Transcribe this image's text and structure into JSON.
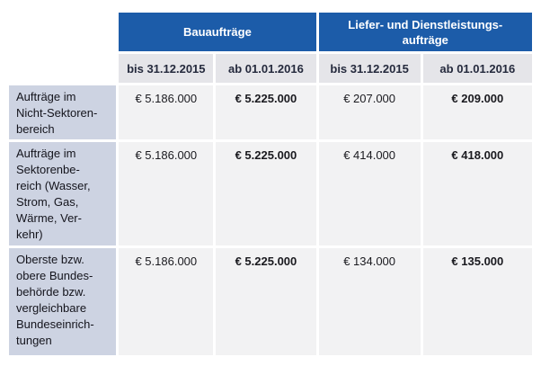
{
  "table": {
    "column_groups": [
      {
        "label": "Bauaufträge"
      },
      {
        "label": "Liefer- und Dienstleistungs-\naufträge"
      }
    ],
    "period_columns": [
      "bis 31.12.2015",
      "ab 01.01.2016",
      "bis 31.12.2015",
      "ab 01.01.2016"
    ],
    "rows": [
      {
        "label": "Aufträge im\nNicht-Sektoren-\nbereich",
        "values": [
          "€ 5.186.000",
          "€ 5.225.000",
          "€ 207.000",
          "€ 209.000"
        ]
      },
      {
        "label": "Aufträge im\nSektorenbe-\nreich (Wasser,\nStrom, Gas,\nWärme, Ver-\nkehr)",
        "values": [
          "€ 5.186.000",
          "€ 5.225.000",
          "€ 414.000",
          "€ 418.000"
        ]
      },
      {
        "label": "Oberste bzw.\nobere Bundes-\nbehörde bzw.\nvergleichbare\nBundeseinrich-\ntungen",
        "values": [
          "€ 5.186.000",
          "€ 5.225.000",
          "€ 134.000",
          "€ 135.000"
        ]
      }
    ],
    "colors": {
      "header_blue": "#1c5ca9",
      "header_text": "#ffffff",
      "subheader_bg": "#e5e5e9",
      "subheader_text": "#252a3d",
      "row_label_bg": "#cdd3e2",
      "cell_bg": "#f2f2f3",
      "body_text": "#1a1a1f"
    }
  }
}
